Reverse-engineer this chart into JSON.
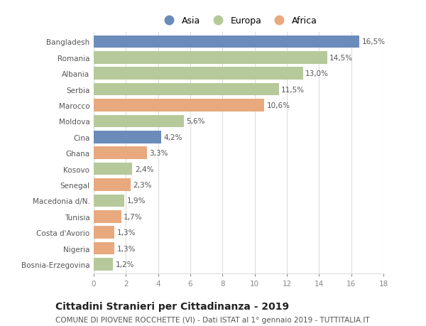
{
  "categories": [
    "Bangladesh",
    "Romania",
    "Albania",
    "Serbia",
    "Marocco",
    "Moldova",
    "Cina",
    "Ghana",
    "Kosovo",
    "Senegal",
    "Macedonia d/N.",
    "Tunisia",
    "Costa d'Avorio",
    "Nigeria",
    "Bosnia-Erzegovina"
  ],
  "values": [
    16.5,
    14.5,
    13.0,
    11.5,
    10.6,
    5.6,
    4.2,
    3.3,
    2.4,
    2.3,
    1.9,
    1.7,
    1.3,
    1.3,
    1.2
  ],
  "labels": [
    "16,5%",
    "14,5%",
    "13,0%",
    "11,5%",
    "10,6%",
    "5,6%",
    "4,2%",
    "3,3%",
    "2,4%",
    "2,3%",
    "1,9%",
    "1,7%",
    "1,3%",
    "1,3%",
    "1,2%"
  ],
  "continents": [
    "Asia",
    "Europa",
    "Europa",
    "Europa",
    "Africa",
    "Europa",
    "Asia",
    "Africa",
    "Europa",
    "Africa",
    "Europa",
    "Africa",
    "Africa",
    "Africa",
    "Europa"
  ],
  "colors": {
    "Asia": "#6b8cba",
    "Europa": "#b5c99a",
    "Africa": "#e8a97e"
  },
  "xlim": [
    0,
    18
  ],
  "xticks": [
    0,
    2,
    4,
    6,
    8,
    10,
    12,
    14,
    16,
    18
  ],
  "title": "Cittadini Stranieri per Cittadinanza - 2019",
  "subtitle": "COMUNE DI PIOVENE ROCCHETTE (VI) - Dati ISTAT al 1° gennaio 2019 - TUTTITALIA.IT",
  "background_color": "#ffffff",
  "grid_color": "#dddddd",
  "bar_height": 0.78,
  "label_fontsize": 7.5,
  "title_fontsize": 10,
  "subtitle_fontsize": 7.5,
  "tick_fontsize": 7.5,
  "legend_fontsize": 9
}
